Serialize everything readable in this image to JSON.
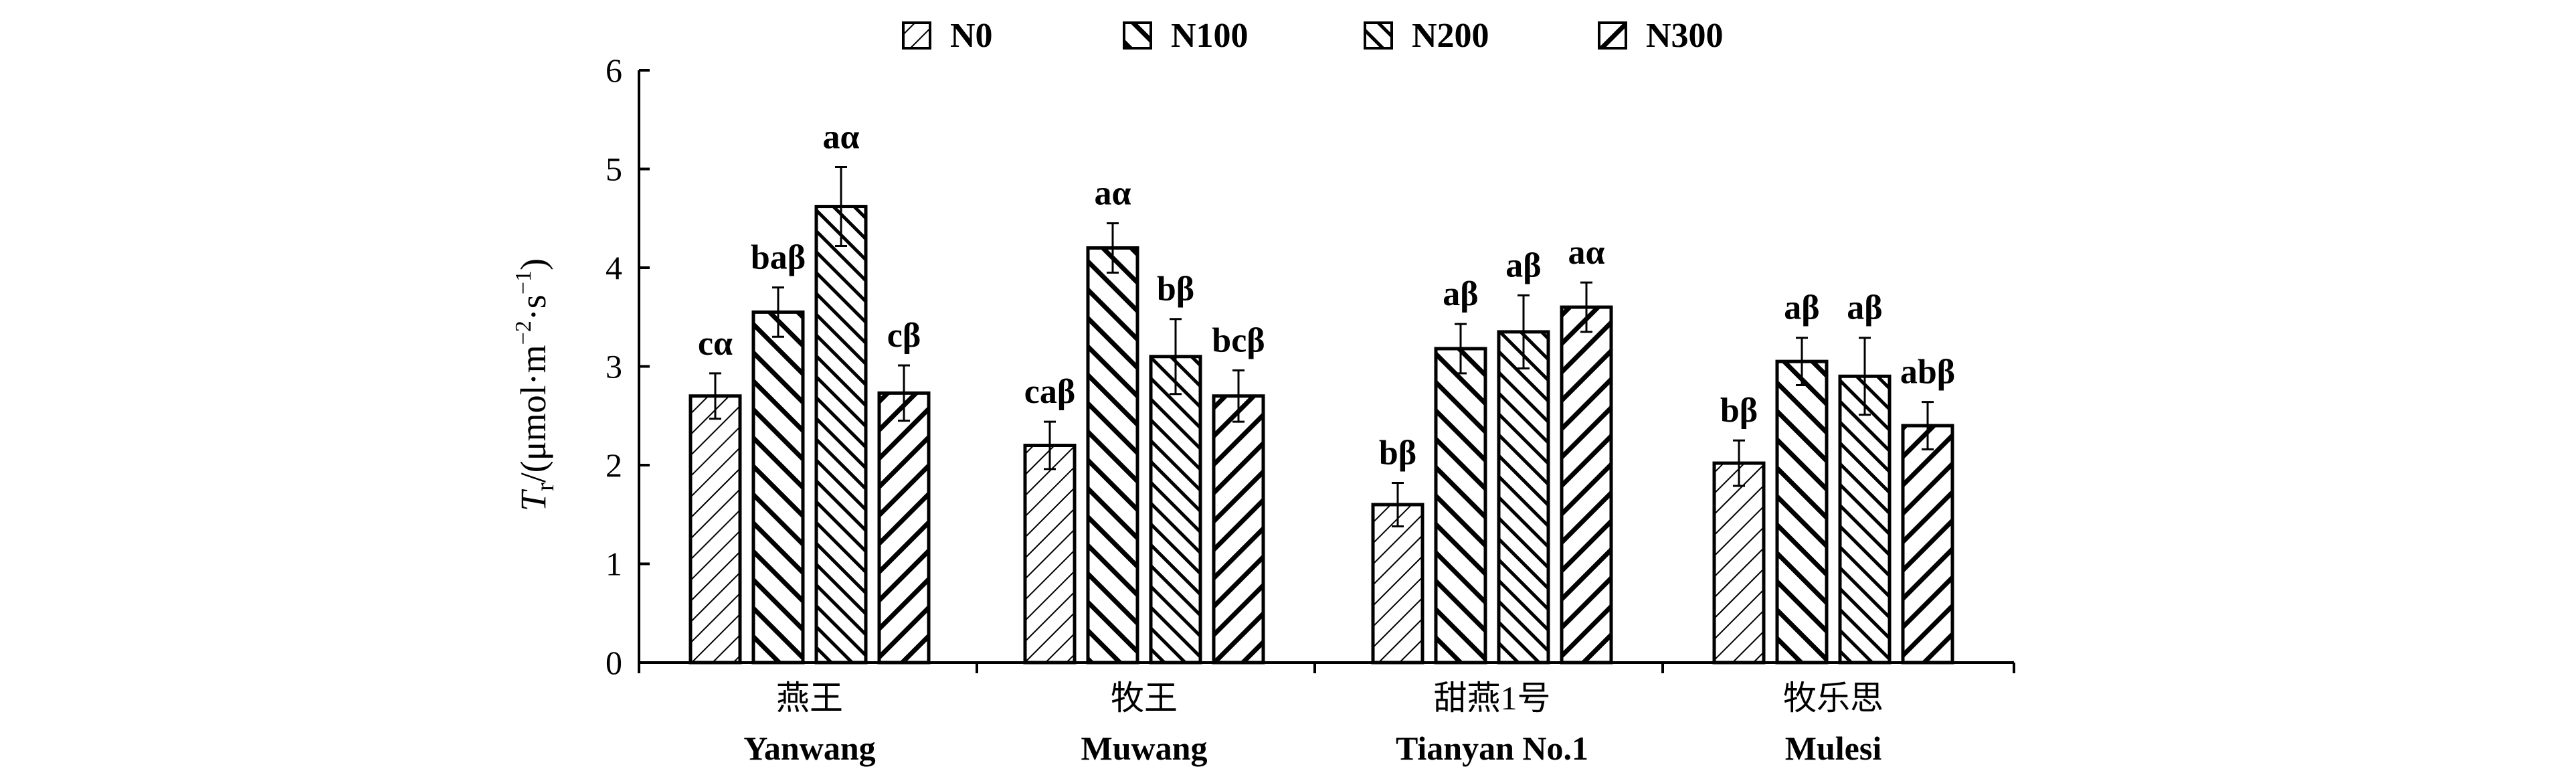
{
  "chart_data": {
    "type": "bar",
    "ylabel_main": "T",
    "ylabel_sub": "r",
    "ylabel_rest": "/(μmol·m",
    "ylabel_exp1": "−2",
    "ylabel_mid": "·s",
    "ylabel_exp2": "−1",
    "ylabel_end": ")",
    "ylim": [
      0,
      6
    ],
    "yticks": [
      0,
      1,
      2,
      3,
      4,
      5,
      6
    ],
    "categories": [
      {
        "cn": "燕王",
        "en": "Yanwang"
      },
      {
        "cn": "牧王",
        "en": "Muwang"
      },
      {
        "cn": "甜燕1号",
        "en": "Tianyan No.1"
      },
      {
        "cn": "牧乐思",
        "en": "Mulesi"
      }
    ],
    "series": [
      {
        "name": "N0",
        "values": [
          2.7,
          2.2,
          1.6,
          2.02
        ],
        "errors": [
          0.23,
          0.24,
          0.22,
          0.23
        ],
        "labels": [
          "cα",
          "caβ",
          "bβ",
          "bβ"
        ]
      },
      {
        "name": "N100",
        "values": [
          3.55,
          4.2,
          3.18,
          3.05
        ],
        "errors": [
          0.25,
          0.25,
          0.25,
          0.24
        ],
        "labels": [
          "baβ",
          "aα",
          "aβ",
          "aβ"
        ]
      },
      {
        "name": "N200",
        "values": [
          4.62,
          3.1,
          3.35,
          2.9
        ],
        "errors": [
          0.4,
          0.38,
          0.37,
          0.39
        ],
        "labels": [
          "aα",
          "bβ",
          "aβ",
          "aβ"
        ]
      },
      {
        "name": "N300",
        "values": [
          2.73,
          2.7,
          3.6,
          2.4
        ],
        "errors": [
          0.28,
          0.26,
          0.25,
          0.24
        ],
        "labels": [
          "cβ",
          "bcβ",
          "aα",
          "abβ"
        ]
      }
    ],
    "legend_position": "top-center"
  }
}
